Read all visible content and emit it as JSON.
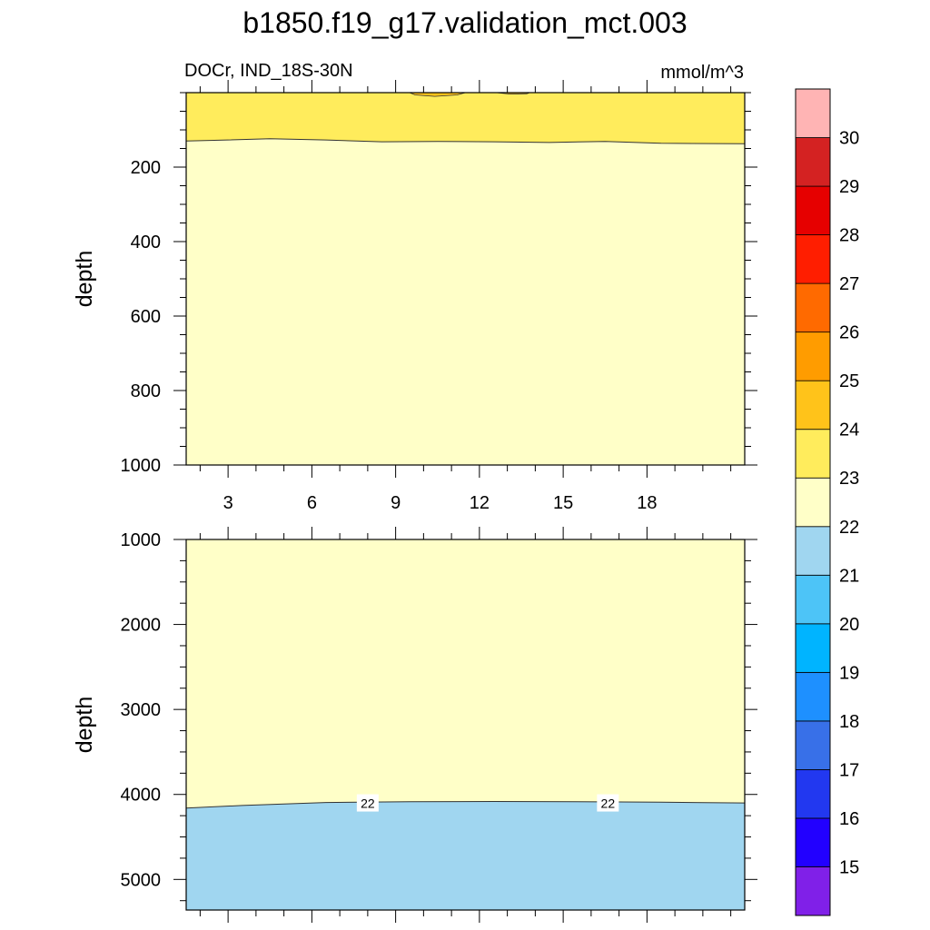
{
  "chart_data": {
    "type": "heatmap",
    "title": "b1850.f19_g17.validation_mct.003",
    "variable_label": "DOCr, IND_18S-30N",
    "units_label": "mmol/m^3",
    "x": {
      "range": [
        1.5,
        21.5
      ],
      "tick_labels": [
        "3",
        "6",
        "9",
        "12",
        "15",
        "18"
      ],
      "tick_values": [
        3,
        6,
        9,
        12,
        15,
        18
      ],
      "minor_step": 1
    },
    "panels": [
      {
        "name": "upper",
        "ylabel": "depth",
        "y_range": [
          0,
          1000
        ],
        "y_tick_labels": [
          "200",
          "400",
          "600",
          "800",
          "1000"
        ],
        "y_tick_values": [
          200,
          400,
          600,
          800,
          1000
        ],
        "y_minor_step": 50,
        "background_level": "22-23",
        "bands": [
          {
            "level": "23-24",
            "color": "#ffec5c",
            "top": [
              [
                1.5,
                0
              ],
              [
                21.5,
                0
              ]
            ],
            "bottom": [
              [
                1.5,
                130
              ],
              [
                2.5,
                128
              ],
              [
                4.5,
                124
              ],
              [
                6.5,
                127
              ],
              [
                8.5,
                132
              ],
              [
                10.5,
                131
              ],
              [
                12.5,
                132
              ],
              [
                14.5,
                134
              ],
              [
                16.5,
                131
              ],
              [
                18.5,
                136
              ],
              [
                21.5,
                137
              ]
            ]
          }
        ],
        "patches": [
          {
            "level": "24-25",
            "color": "#ffc31a",
            "outline": [
              [
                9.5,
                0
              ],
              [
                9.7,
                6
              ],
              [
                10.4,
                10
              ],
              [
                11.2,
                6
              ],
              [
                11.5,
                0
              ]
            ]
          },
          {
            "level": "24-25",
            "color": "#ffc31a",
            "outline": [
              [
                12.6,
                0
              ],
              [
                13.1,
                4
              ],
              [
                13.7,
                3
              ],
              [
                13.8,
                0
              ]
            ]
          }
        ],
        "contour_labels": []
      },
      {
        "name": "lower",
        "ylabel": "depth",
        "y_range": [
          1000,
          5360
        ],
        "y_tick_labels": [
          "1000",
          "2000",
          "3000",
          "4000",
          "5000"
        ],
        "y_tick_values": [
          1000,
          2000,
          3000,
          4000,
          5000
        ],
        "y_minor_step": 250,
        "background_level": "22-23",
        "bands": [
          {
            "level": "21-22",
            "color": "#a0d6f0",
            "top": [
              [
                1.5,
                4160
              ],
              [
                3.5,
                4130
              ],
              [
                6.5,
                4095
              ],
              [
                9.5,
                4085
              ],
              [
                12.5,
                4083
              ],
              [
                15.5,
                4085
              ],
              [
                18.5,
                4092
              ],
              [
                21.5,
                4100
              ]
            ],
            "bottom": [
              [
                1.5,
                5360
              ],
              [
                21.5,
                5360
              ]
            ]
          }
        ],
        "patches": [],
        "contour_labels": [
          {
            "text": "22",
            "x": 8.0,
            "y": 4105
          },
          {
            "text": "22",
            "x": 16.6,
            "y": 4105
          }
        ]
      }
    ],
    "colorbar": {
      "levels": [
        "15",
        "16",
        "17",
        "18",
        "19",
        "20",
        "21",
        "22",
        "23",
        "24",
        "25",
        "26",
        "27",
        "28",
        "29",
        "30"
      ],
      "colors": [
        "#8020e8",
        "#2200ff",
        "#2238f0",
        "#3870e8",
        "#1e90ff",
        "#00b4ff",
        "#4dc4f7",
        "#a0d6f0",
        "#ffffc8",
        "#ffec5c",
        "#ffc31a",
        "#ff9c00",
        "#ff6a00",
        "#ff1e00",
        "#e60000",
        "#d42222",
        "#ffb4b4"
      ]
    }
  }
}
